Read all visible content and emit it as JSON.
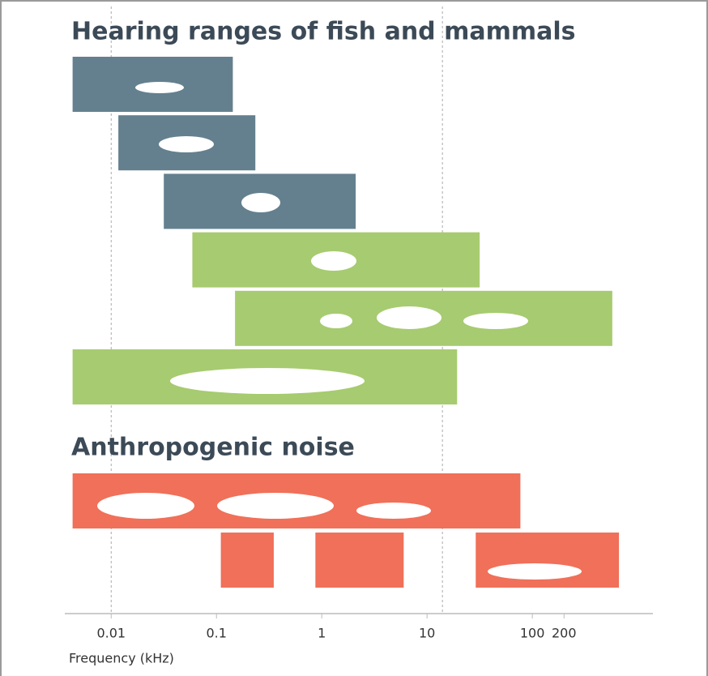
{
  "chart_data": {
    "type": "range-bar",
    "xlabel": "Frequency (kHz)",
    "xscale": "log",
    "xlim": [
      0.0035,
      1500
    ],
    "xticks": [
      0.01,
      0.1,
      1,
      10,
      100,
      200
    ],
    "reference_lines": [
      0.01,
      14
    ],
    "sections": [
      {
        "title": "Hearing ranges of fish and mammals",
        "rows": [
          {
            "color": "#64808e",
            "ranges": [
              [
                0.0043,
                0.143
              ]
            ]
          },
          {
            "color": "#64808e",
            "ranges": [
              [
                0.0117,
                0.234
              ]
            ]
          },
          {
            "color": "#64808e",
            "ranges": [
              [
                0.0316,
                2.1
              ]
            ]
          },
          {
            "color": "#a7cb70",
            "ranges": [
              [
                0.059,
                31.6
              ]
            ]
          },
          {
            "color": "#a7cb70",
            "ranges": [
              [
                0.15,
                575
              ]
            ]
          },
          {
            "color": "#a7cb70",
            "ranges": [
              [
                0.0043,
                19.3
              ]
            ]
          }
        ]
      },
      {
        "title": "Anthropogenic noise",
        "rows": [
          {
            "color": "#f07059",
            "ranges": [
              [
                0.0043,
                77
              ]
            ]
          },
          {
            "color": "#f07059",
            "ranges": [
              [
                0.11,
                0.35
              ],
              [
                0.87,
                6
              ],
              [
                29,
                665
              ]
            ]
          }
        ]
      }
    ]
  }
}
